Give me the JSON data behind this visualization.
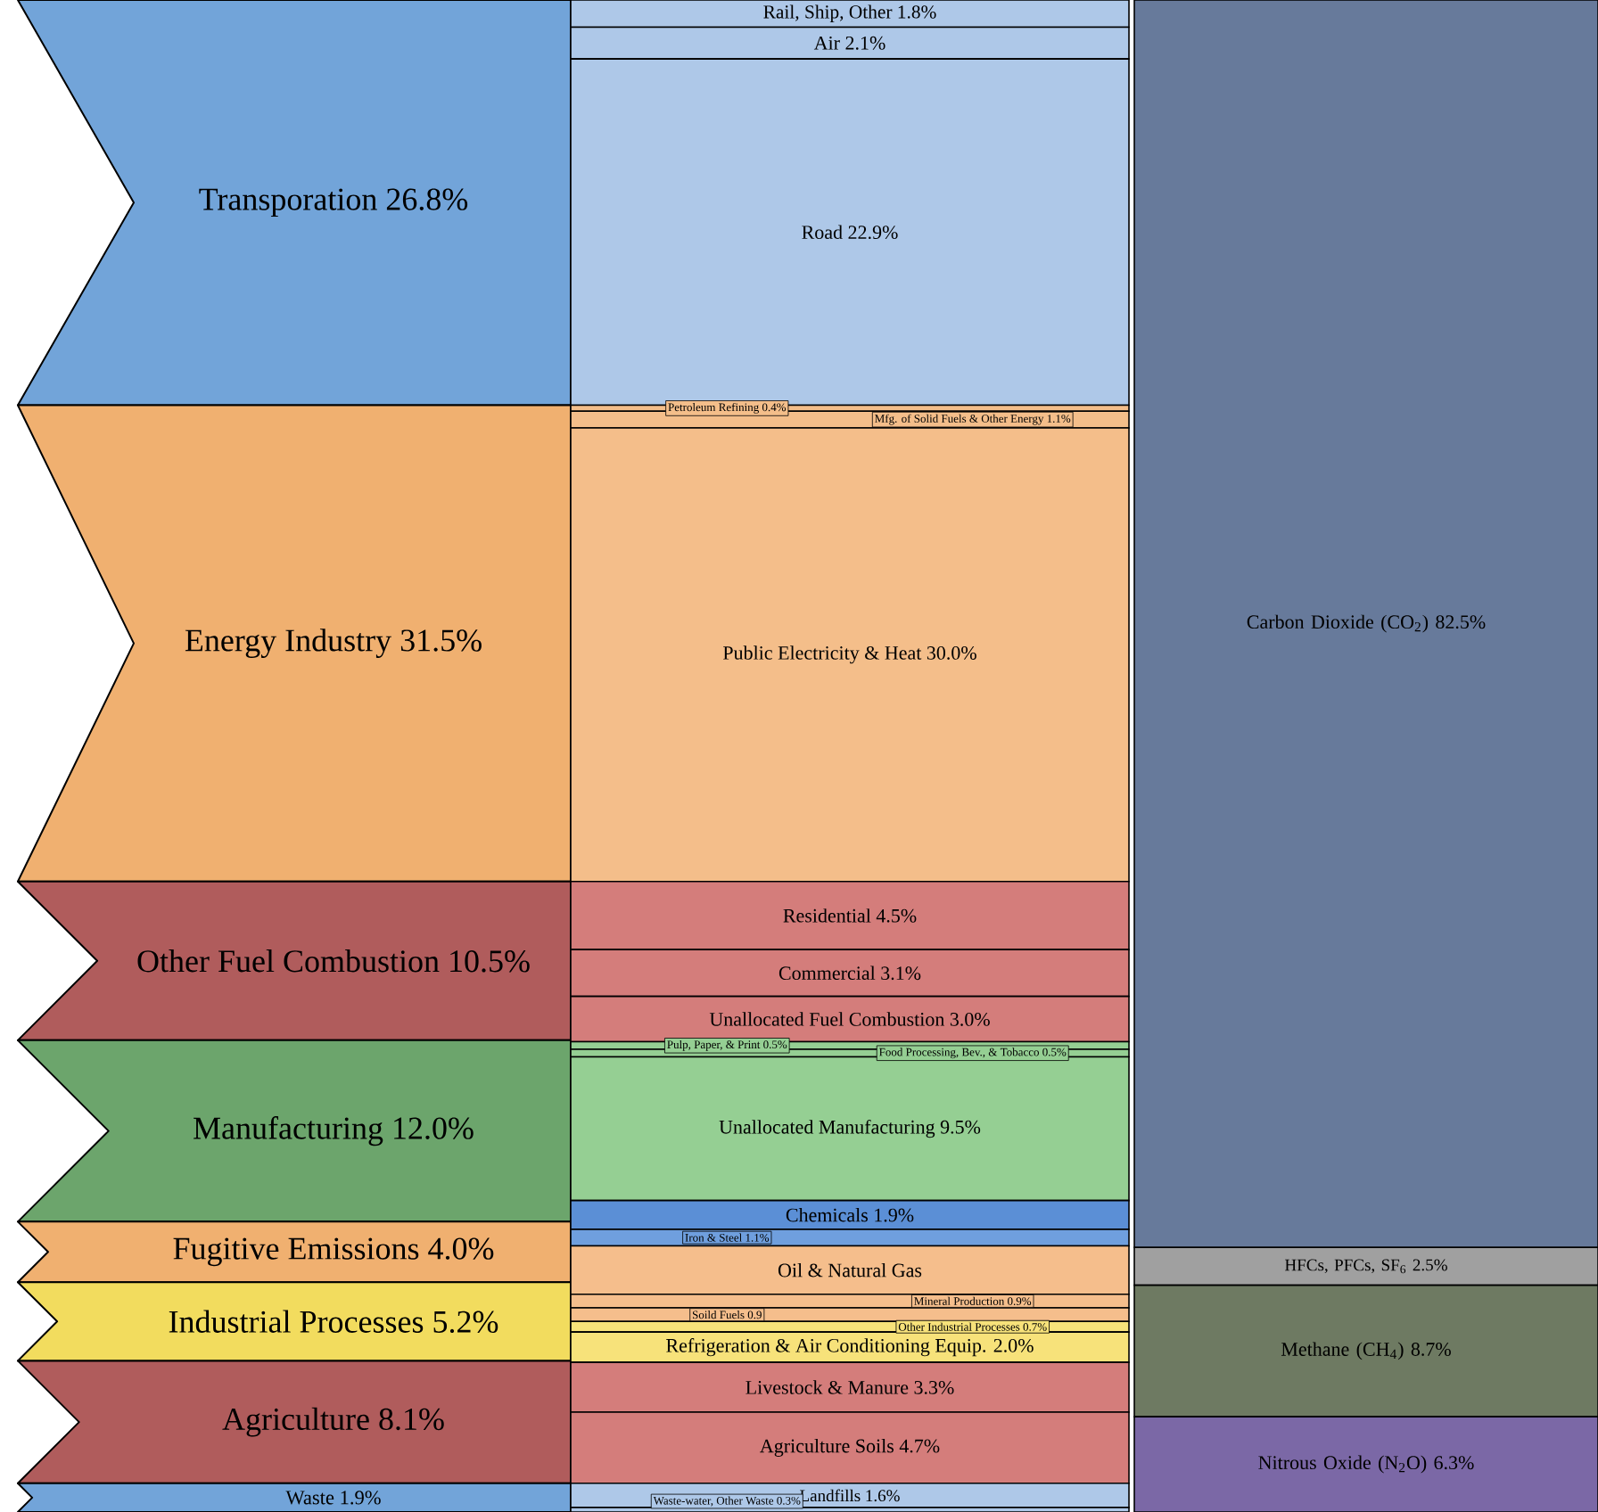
{
  "chart_data": [
    {
      "type": "other",
      "categories": [
        "Transporation",
        "Energy Industry",
        "Other Fuel Combustion",
        "Manufacturing",
        "Fugitive Emissions",
        "Industrial Processes",
        "Agriculture",
        "Waste"
      ],
      "values": [
        26.8,
        31.5,
        10.5,
        12.0,
        4.0,
        5.2,
        8.1,
        1.9
      ],
      "value_labels": [
        "26.8%",
        "31.5%",
        "10.5%",
        "12.0%",
        "4.0%",
        "5.2%",
        "8.1%",
        "1.9%"
      ],
      "colors": [
        "#72a4d9",
        "#f0b070",
        "#b05c5c",
        "#6ca56c",
        "#f0b070",
        "#f2dc5e",
        "#b05c5c",
        "#72a4d9"
      ]
    },
    {
      "type": "other",
      "categories": [
        "Rail, Ship, Other",
        "Air",
        "Road",
        "Petroleum Refining",
        "Mfg. of Solid Fuels & Other Energy",
        "Public Electricity & Heat",
        "Residential",
        "Commercial",
        "Unallocated Fuel Combustion",
        "Pulp, Paper, & Print",
        "Food Processing, Bev., & Tobacco",
        "Unallocated Manufacturing",
        "Chemicals",
        "Iron & Steel",
        "Oil & Natural Gas",
        "Mineral Production",
        "Soild Fuels",
        "Other Industrial Processes",
        "Refrigeration & Air Conditioning Equip.",
        "Livestock & Manure",
        "Agriculture Soils",
        "Landfills",
        "Waste-water, Other Waste"
      ],
      "values": [
        1.8,
        2.1,
        22.9,
        0.4,
        1.1,
        30.0,
        4.5,
        3.1,
        3.0,
        0.5,
        0.5,
        9.5,
        1.9,
        1.1,
        null,
        0.9,
        0.9,
        0.7,
        2.0,
        3.3,
        4.7,
        1.6,
        0.3
      ],
      "value_labels": [
        "1.8%",
        "2.1%",
        "22.9%",
        "0.4%",
        "1.1%",
        "30.0%",
        "4.5%",
        "3.1%",
        "3.0%",
        "0.5%",
        "0.5%",
        "9.5%",
        "1.9%",
        "1.1%",
        null,
        "0.9%",
        "0.9",
        "0.7%",
        "2.0%",
        "3.3%",
        "4.7%",
        "1.6%",
        "0.3%"
      ],
      "colors": [
        "#aec8e8",
        "#aec8e8",
        "#aec8e8",
        "#f4be8a",
        "#f4be8a",
        "#f4be8a",
        "#d47d7b",
        "#d47d7b",
        "#d47d7b",
        "#95cf93",
        "#95cf93",
        "#95cf93",
        "#5b8fd6",
        "#6f9fde",
        "#f5be8c",
        "#f5be8c",
        "#f5be8c",
        "#f7e27a",
        "#f7e27a",
        "#d47d7b",
        "#d47d7b",
        "#aec8e8",
        "#aec8e8"
      ]
    },
    {
      "type": "other",
      "categories": [
        "Carbon Dioxide (CO$_{2}$)",
        "HFCs, PFCs, SF$_{6}$",
        "Methane (CH$_{4}$)",
        "Nitrous Oxide (N$_{2}$O)"
      ],
      "values": [
        82.5,
        2.5,
        8.7,
        6.3
      ],
      "value_labels": [
        "82.5%",
        "2.5%",
        "8.7%",
        "6.3%"
      ],
      "colors": [
        "#677a9b",
        "#a0a0a0",
        "#6e7a62",
        "#7b68a6"
      ]
    }
  ]
}
